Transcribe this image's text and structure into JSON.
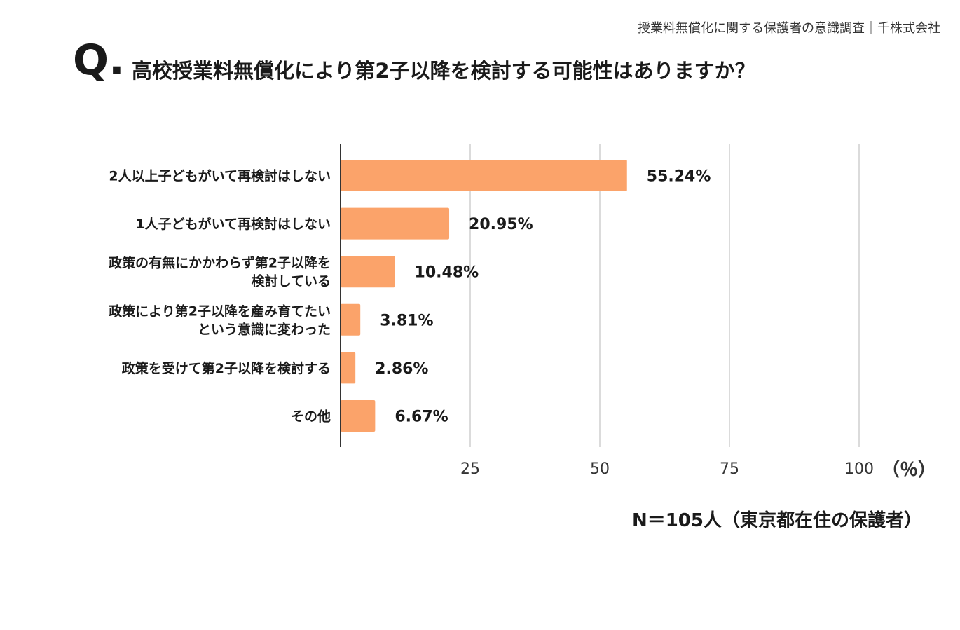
{
  "header": {
    "source": "授業料無償化に関する保護者の意識調査｜千株式会社",
    "q_mark": "Q.",
    "question": "高校授業料無償化により第2子以降を検討する可能性はありますか？"
  },
  "chart_data": {
    "type": "bar",
    "orientation": "horizontal",
    "categories": [
      [
        "2人以上子どもがいて再検討はしない"
      ],
      [
        "1人子どもがいて再検討はしない"
      ],
      [
        "政策の有無にかかわらず第2子以降を",
        "検討している"
      ],
      [
        "政策により第2子以降を産み育てたい",
        "という意識に変わった"
      ],
      [
        "政策を受けて第2子以降を検討する"
      ],
      [
        "その他"
      ]
    ],
    "values": [
      55.24,
      20.95,
      10.48,
      3.81,
      2.86,
      6.67
    ],
    "value_labels": [
      "55.24%",
      "20.95%",
      "10.48%",
      "3.81%",
      "2.86%",
      "6.67%"
    ],
    "xlim": [
      0,
      100
    ],
    "xticks": [
      25,
      50,
      75,
      100
    ],
    "xtick_labels": [
      "25",
      "50",
      "75",
      "100"
    ],
    "grid": true,
    "bar_color": "#FBA36A",
    "unit_label": "（％）"
  },
  "footer": {
    "sample_note": "N＝105人（東京都在住の保護者）"
  }
}
